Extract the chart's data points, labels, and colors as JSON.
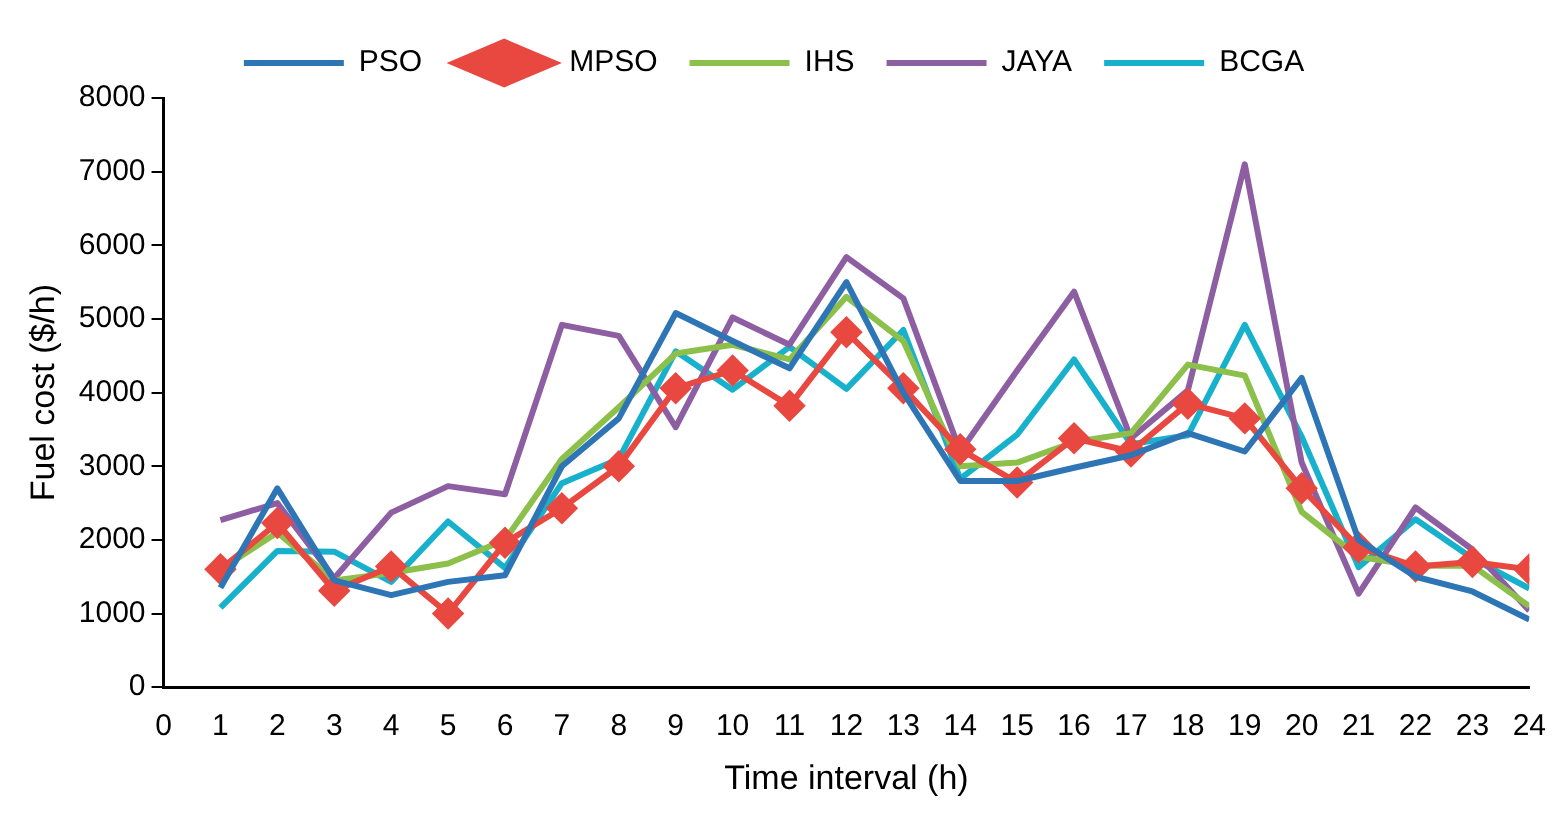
{
  "chart_data": {
    "type": "line",
    "xlabel": "Time interval (h)",
    "ylabel": "Fuel cost ($/h)",
    "x": [
      1,
      2,
      3,
      4,
      5,
      6,
      7,
      8,
      9,
      10,
      11,
      12,
      13,
      14,
      15,
      16,
      17,
      18,
      19,
      20,
      21,
      22,
      23,
      24
    ],
    "xlim": [
      0,
      24
    ],
    "xticks": [
      0,
      1,
      2,
      3,
      4,
      5,
      6,
      7,
      8,
      9,
      10,
      11,
      12,
      13,
      14,
      15,
      16,
      17,
      18,
      19,
      20,
      21,
      22,
      23,
      24
    ],
    "ylim": [
      0,
      8000
    ],
    "yticks": [
      0,
      1000,
      2000,
      3000,
      4000,
      5000,
      6000,
      7000,
      8000
    ],
    "grid": false,
    "legend": "top",
    "marker": "none",
    "line_style": "solid",
    "series": [
      {
        "name": "PSO",
        "color": "#2e75b6",
        "values": [
          1350,
          2700,
          1450,
          1250,
          1430,
          1520,
          3000,
          3650,
          5080,
          4700,
          4330,
          5500,
          4000,
          2800,
          2800,
          2980,
          3150,
          3450,
          3200,
          4200,
          2000,
          1500,
          1300,
          920
        ]
      },
      {
        "name": "MPSO",
        "color": "#e8483f",
        "marker": "diamond",
        "values": [
          1600,
          2230,
          1310,
          1640,
          1000,
          1960,
          2430,
          3000,
          4060,
          4300,
          3820,
          4820,
          4060,
          3230,
          2780,
          3380,
          3200,
          3850,
          3650,
          2700,
          1900,
          1640,
          1700,
          1600
        ]
      },
      {
        "name": "IHS",
        "color": "#8cc04b",
        "values": [
          1600,
          2100,
          1450,
          1550,
          1680,
          2000,
          3100,
          3800,
          4530,
          4650,
          4450,
          5300,
          4700,
          3000,
          3050,
          3330,
          3450,
          4380,
          4230,
          2380,
          1770,
          1650,
          1650,
          1100
        ]
      },
      {
        "name": "JAYA",
        "color": "#8e5ea2",
        "values": [
          2270,
          2500,
          1480,
          2370,
          2730,
          2620,
          4920,
          4770,
          3530,
          5020,
          4650,
          5840,
          5280,
          3200,
          4300,
          5370,
          3380,
          4030,
          7100,
          3050,
          1270,
          2440,
          1870,
          1040
        ]
      },
      {
        "name": "BCGA",
        "color": "#17b1cc",
        "values": [
          1080,
          1850,
          1840,
          1430,
          2250,
          1620,
          2770,
          3100,
          4560,
          4040,
          4620,
          4050,
          4850,
          2830,
          3430,
          4450,
          3300,
          3420,
          4920,
          3400,
          1630,
          2280,
          1750,
          1340
        ]
      }
    ]
  }
}
